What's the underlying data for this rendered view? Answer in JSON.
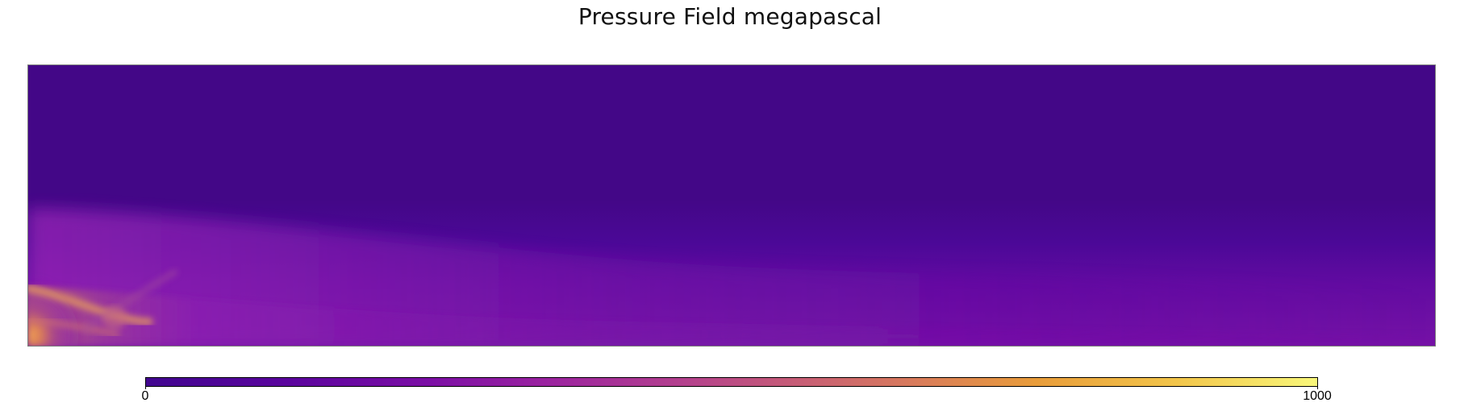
{
  "chart_data": {
    "type": "heatmap",
    "title": "Pressure Field megapascal",
    "xlabel": "",
    "ylabel": "",
    "colorbar": {
      "min": 0,
      "max": 1000,
      "tick_labels": [
        "0",
        "1000"
      ],
      "palette": [
        "#41058f",
        "#5a039d",
        "#7b0ea5",
        "#9a22a0",
        "#b4418d",
        "#c75e75",
        "#d97c5a",
        "#e89c3a",
        "#f2c54a",
        "#f8f77a"
      ]
    },
    "grid": false,
    "legend": "bottom",
    "field_description_colors": {
      "background_low": "#430787",
      "mid_band": "#7a12a6",
      "highlight": "#e0964e"
    }
  }
}
